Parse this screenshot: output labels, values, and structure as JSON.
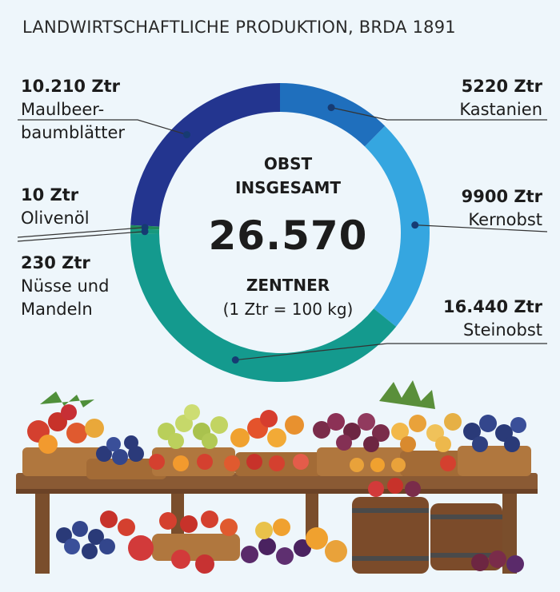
{
  "title": "LANDWIRTSCHAFTLICHE PRODUKTION, BRDA 1891",
  "center": {
    "heading": "OBST\nINSGESAMT",
    "total": "26.570",
    "unit": "ZENTNER",
    "note": "(1 Ztr = 100 kg)"
  },
  "chart_data": {
    "type": "pie",
    "title": "LANDWIRTSCHAFTLICHE PRODUKTION, BRDA 1891",
    "unit": "Ztr",
    "slices": [
      {
        "label": "Kastanien",
        "value_label": "5220 Ztr",
        "value": 5220,
        "color": "#1f6fbd"
      },
      {
        "label": "Kernobst",
        "value_label": "9900 Ztr",
        "value": 9900,
        "color": "#35a6e0"
      },
      {
        "label": "Steinobst",
        "value_label": "16.440 Ztr",
        "value": 16440,
        "color": "#149a8e"
      },
      {
        "label": "Nüsse und\nMandeln",
        "value_label": "230 Ztr",
        "value": 230,
        "color": "#17997f"
      },
      {
        "label": "Olivenöl",
        "value_label": "10 Ztr",
        "value": 10,
        "color": "#1f8a5a"
      },
      {
        "label": "Maulbeer-\nbaumblätter",
        "value_label": "10.210 Ztr",
        "value": 10210,
        "color": "#23358f"
      }
    ]
  },
  "colors": {
    "background": "#eef6fb",
    "leader_line": "#333333",
    "marker": "#163b73"
  },
  "illustration": {
    "subject": "market-stall-with-fruit-baskets-and-barrels"
  }
}
